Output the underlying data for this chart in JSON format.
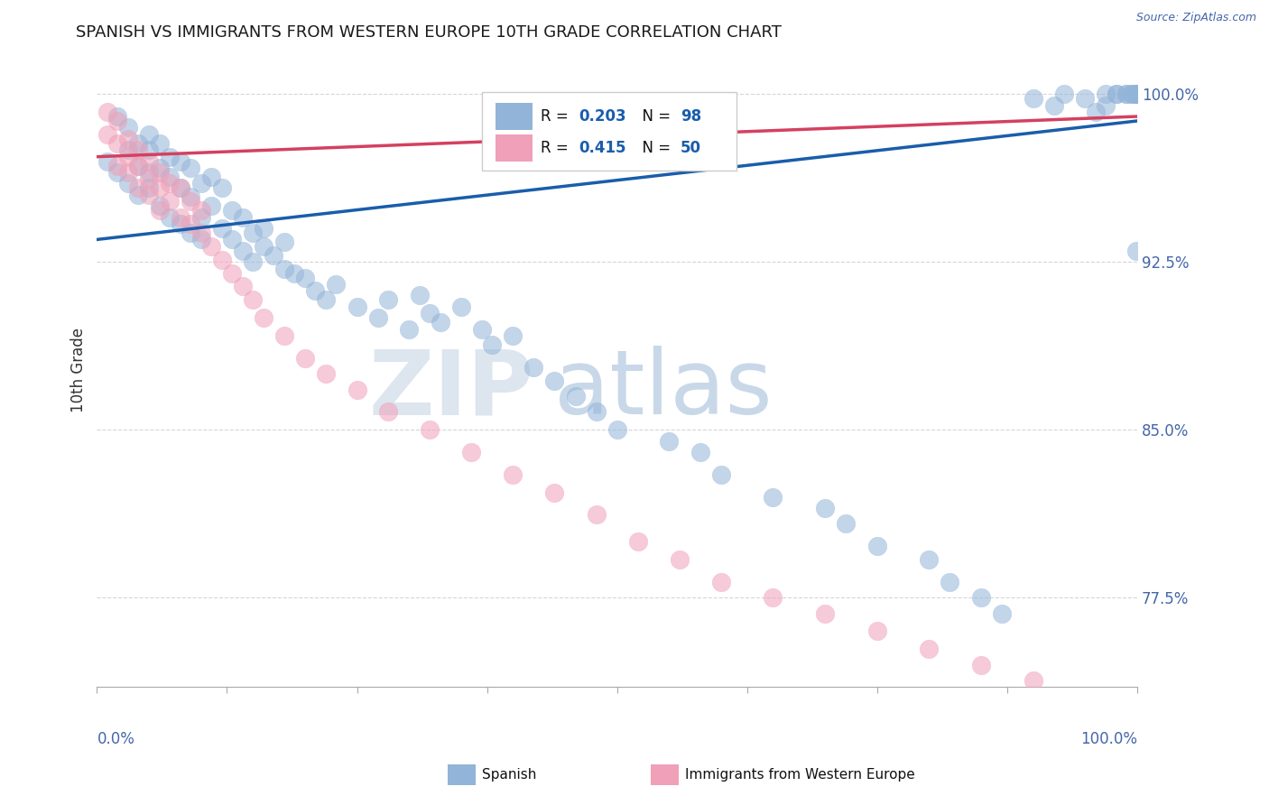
{
  "title": "SPANISH VS IMMIGRANTS FROM WESTERN EUROPE 10TH GRADE CORRELATION CHART",
  "source": "Source: ZipAtlas.com",
  "ylabel": "10th Grade",
  "xlim": [
    0.0,
    1.0
  ],
  "ylim": [
    0.735,
    1.018
  ],
  "ytick_vals": [
    0.775,
    0.85,
    0.925,
    1.0
  ],
  "ytick_labels": [
    "77.5%",
    "85.0%",
    "92.5%",
    "100.0%"
  ],
  "blue_color": "#92b4d8",
  "pink_color": "#f0a0b8",
  "blue_line_color": "#1a5dab",
  "pink_line_color": "#d44060",
  "title_color": "#1a1a1a",
  "source_color": "#4466aa",
  "axis_label_color": "#333333",
  "tick_label_color": "#4466aa",
  "legend_r_color": "#1a5dab",
  "blue_trend": [
    0.935,
    0.988
  ],
  "pink_trend": [
    0.972,
    0.99
  ],
  "blue_scatter_x": [
    0.01,
    0.02,
    0.02,
    0.03,
    0.03,
    0.03,
    0.04,
    0.04,
    0.04,
    0.05,
    0.05,
    0.05,
    0.05,
    0.06,
    0.06,
    0.06,
    0.07,
    0.07,
    0.07,
    0.08,
    0.08,
    0.08,
    0.09,
    0.09,
    0.09,
    0.1,
    0.1,
    0.1,
    0.11,
    0.11,
    0.12,
    0.12,
    0.13,
    0.13,
    0.14,
    0.14,
    0.15,
    0.15,
    0.16,
    0.16,
    0.17,
    0.18,
    0.18,
    0.19,
    0.2,
    0.21,
    0.22,
    0.23,
    0.25,
    0.27,
    0.28,
    0.3,
    0.31,
    0.32,
    0.33,
    0.35,
    0.37,
    0.38,
    0.4,
    0.42,
    0.44,
    0.46,
    0.48,
    0.5,
    0.55,
    0.58,
    0.6,
    0.65,
    0.7,
    0.72,
    0.75,
    0.8,
    0.82,
    0.85,
    0.87,
    0.9,
    0.92,
    0.93,
    0.95,
    0.96,
    0.97,
    0.97,
    0.98,
    0.98,
    0.99,
    0.99,
    0.995,
    0.995,
    0.998,
    0.999,
    0.999,
    0.999,
    0.999,
    0.999,
    1.0,
    1.0,
    1.0,
    1.0
  ],
  "blue_scatter_y": [
    0.97,
    0.99,
    0.965,
    0.975,
    0.96,
    0.985,
    0.968,
    0.955,
    0.978,
    0.965,
    0.958,
    0.975,
    0.982,
    0.95,
    0.967,
    0.978,
    0.945,
    0.963,
    0.972,
    0.942,
    0.958,
    0.97,
    0.938,
    0.954,
    0.967,
    0.945,
    0.96,
    0.935,
    0.95,
    0.963,
    0.94,
    0.958,
    0.935,
    0.948,
    0.93,
    0.945,
    0.938,
    0.925,
    0.94,
    0.932,
    0.928,
    0.922,
    0.934,
    0.92,
    0.918,
    0.912,
    0.908,
    0.915,
    0.905,
    0.9,
    0.908,
    0.895,
    0.91,
    0.902,
    0.898,
    0.905,
    0.895,
    0.888,
    0.892,
    0.878,
    0.872,
    0.865,
    0.858,
    0.85,
    0.845,
    0.84,
    0.83,
    0.82,
    0.815,
    0.808,
    0.798,
    0.792,
    0.782,
    0.775,
    0.768,
    0.998,
    0.995,
    1.0,
    0.998,
    0.992,
    0.995,
    1.0,
    1.0,
    1.0,
    1.0,
    1.0,
    1.0,
    1.0,
    1.0,
    1.0,
    1.0,
    1.0,
    1.0,
    0.93,
    1.0,
    1.0,
    1.0,
    1.0
  ],
  "pink_scatter_x": [
    0.01,
    0.01,
    0.02,
    0.02,
    0.02,
    0.03,
    0.03,
    0.03,
    0.04,
    0.04,
    0.04,
    0.05,
    0.05,
    0.05,
    0.06,
    0.06,
    0.06,
    0.07,
    0.07,
    0.08,
    0.08,
    0.09,
    0.09,
    0.1,
    0.1,
    0.11,
    0.12,
    0.13,
    0.14,
    0.15,
    0.16,
    0.18,
    0.2,
    0.22,
    0.25,
    0.28,
    0.32,
    0.36,
    0.4,
    0.44,
    0.48,
    0.52,
    0.56,
    0.6,
    0.65,
    0.7,
    0.75,
    0.8,
    0.85,
    0.9
  ],
  "pink_scatter_y": [
    0.992,
    0.982,
    0.988,
    0.978,
    0.968,
    0.98,
    0.972,
    0.965,
    0.975,
    0.968,
    0.958,
    0.97,
    0.962,
    0.955,
    0.965,
    0.958,
    0.948,
    0.96,
    0.952,
    0.958,
    0.945,
    0.952,
    0.942,
    0.948,
    0.938,
    0.932,
    0.926,
    0.92,
    0.914,
    0.908,
    0.9,
    0.892,
    0.882,
    0.875,
    0.868,
    0.858,
    0.85,
    0.84,
    0.83,
    0.822,
    0.812,
    0.8,
    0.792,
    0.782,
    0.775,
    0.768,
    0.76,
    0.752,
    0.745,
    0.738
  ]
}
